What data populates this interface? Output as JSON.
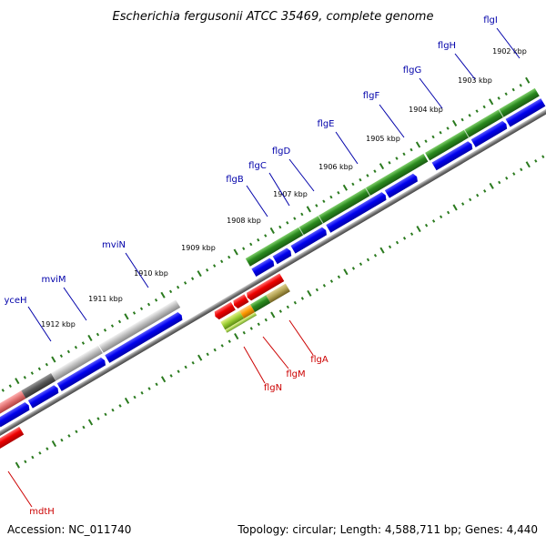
{
  "title": "Escherichia fergusonii ATCC 35469, complete genome",
  "footer": {
    "accession": "Accession: NC_011740",
    "summary": "Topology: circular; Length: 4,588,711 bp; Genes: 4,440"
  },
  "colors": {
    "forward_cds": "#0000ee",
    "reverse_cds": "#ee0000",
    "green_feature": "#2a8a1e",
    "gray_feature": "#aaaaaa",
    "backbone": "#888888",
    "tick": "#2a7a1e",
    "top_label": "#0000aa",
    "bottom_label": "#cc0000"
  },
  "ticks": [
    {
      "label": "1902 kbp"
    },
    {
      "label": "1903 kbp"
    },
    {
      "label": "1904 kbp"
    },
    {
      "label": "1905 kbp"
    },
    {
      "label": "1906 kbp"
    },
    {
      "label": "1907 kbp"
    },
    {
      "label": "1908 kbp"
    },
    {
      "label": "1909 kbp"
    },
    {
      "label": "1910 kbp"
    },
    {
      "label": "1911 kbp"
    },
    {
      "label": "1912 kbp"
    }
  ],
  "top_genes": [
    {
      "name": "flgI"
    },
    {
      "name": "flgH"
    },
    {
      "name": "flgG"
    },
    {
      "name": "flgF"
    },
    {
      "name": "flgE"
    },
    {
      "name": "flgD"
    },
    {
      "name": "flgC"
    },
    {
      "name": "flgB"
    },
    {
      "name": "mviN"
    },
    {
      "name": "mviM"
    },
    {
      "name": "yceH"
    }
  ],
  "bottom_genes": [
    {
      "name": "flgA"
    },
    {
      "name": "flgM"
    },
    {
      "name": "flgN"
    },
    {
      "name": "mdtH"
    }
  ]
}
